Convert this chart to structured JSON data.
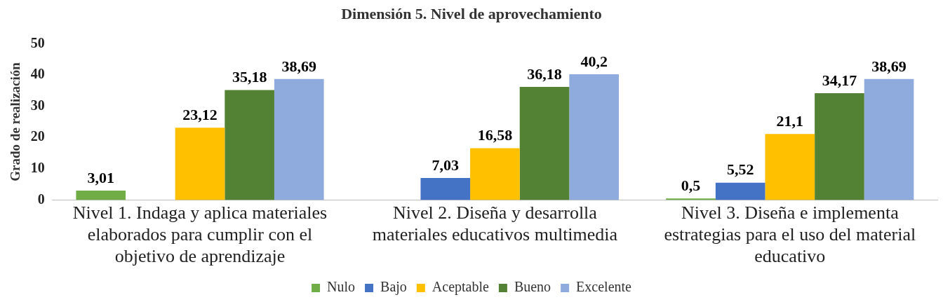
{
  "chart_data": {
    "type": "bar",
    "title": "Dimensión 5. Nivel de aprovechamiento",
    "ylabel": "Grado de realización",
    "categories": [
      "Nivel 1. Indaga y aplica materiales elaborados para cumplir con el objetivo de aprendizaje",
      "Nivel 2. Diseña y desarrolla materiales educativos multimedia",
      "Nivel 3. Diseña e implementa estrategias para el uso del material educativo"
    ],
    "series": [
      {
        "name": "Nulo",
        "color": "#70ad47",
        "values": [
          3.01,
          null,
          0.5
        ],
        "value_labels": [
          "3,01",
          null,
          "0,5"
        ]
      },
      {
        "name": "Bajo",
        "color": "#4472c4",
        "values": [
          null,
          7.03,
          5.52
        ],
        "value_labels": [
          null,
          "7,03",
          "5,52"
        ]
      },
      {
        "name": "Aceptable",
        "color": "#ffc000",
        "values": [
          23.12,
          16.58,
          21.1
        ],
        "value_labels": [
          "23,12",
          "16,58",
          "21,1"
        ]
      },
      {
        "name": "Bueno",
        "color": "#548235",
        "values": [
          35.18,
          36.18,
          34.17
        ],
        "value_labels": [
          "35,18",
          "36,18",
          "34,17"
        ]
      },
      {
        "name": "Excelente",
        "color": "#8faadc",
        "values": [
          38.69,
          40.2,
          38.69
        ],
        "value_labels": [
          "38,69",
          "40,2",
          "38,69"
        ]
      }
    ],
    "ylim": [
      0,
      50
    ],
    "yticks": [
      0,
      10,
      20,
      30,
      40,
      50
    ],
    "grid": false,
    "legend": "bottom"
  }
}
